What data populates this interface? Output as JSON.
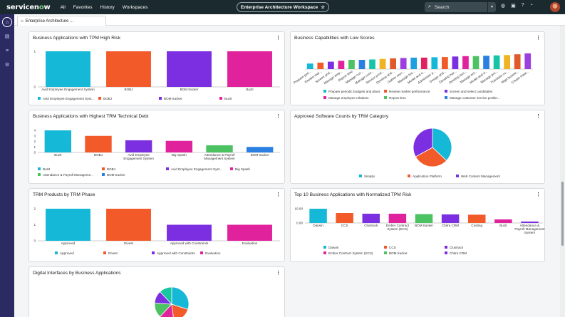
{
  "topbar": {
    "logo_pre": "servicen",
    "logo_o": "o",
    "logo_post": "w",
    "nav": [
      "All",
      "Favorites",
      "History",
      "Workspaces"
    ],
    "workspace": "Enterprise Architecture Workspace",
    "search_placeholder": "Search"
  },
  "tab": {
    "label": "Enterprise Architecture ..."
  },
  "colors": {
    "cyan": "#15b8d6",
    "orange": "#f25a2a",
    "purple": "#7b2fe0",
    "magenta": "#e0229c",
    "green": "#4cc263",
    "blue": "#2a7fe0",
    "teal": "#17c4a8",
    "yellow": "#f0b323"
  },
  "cards": {
    "tpm_high_risk": {
      "title": "Business Applications with TPM High Risk",
      "chart_data": {
        "type": "bar",
        "categories": [
          "Avid Employee Engagement System",
          "BOBJ",
          "BOM tracker",
          "Buzit"
        ],
        "values": [
          1,
          1,
          1,
          1
        ],
        "ylim": [
          0,
          1
        ],
        "yticks": [
          "0",
          "1"
        ],
        "legend": [
          "Avid Employee Engagement Syst...",
          "BOBJ",
          "BOM tracker",
          "Buzit"
        ]
      }
    },
    "low_scores": {
      "title": "Business Capabilities with Low Scores",
      "chart_data": {
        "type": "bar",
        "categories": [
          "Prepare peri...",
          "Review mar...",
          "Screen and...",
          "Manage emp...",
          "Report time",
          "Manage cus...",
          "Manage cont...",
          "Service prod...",
          "Develop and...",
          "Gather reso...",
          "Manage tea...",
          "Model and e...",
          "Administer p...",
          "Design and...",
          "Develop har...",
          "Develop bus...",
          "Manage ent...",
          "Model and d...",
          "Manage pro...",
          "Translate cu...",
          "Align busine...",
          "Create mate..."
        ],
        "values": [
          0.3,
          0.35,
          0.4,
          0.45,
          0.5,
          0.5,
          0.52,
          0.55,
          0.58,
          0.6,
          0.62,
          0.62,
          0.64,
          0.65,
          0.68,
          0.7,
          0.7,
          0.72,
          0.74,
          0.76,
          0.8,
          0.85
        ],
        "ylim": [
          0,
          1
        ],
        "legend": [
          "Prepare periodic budgets and plans",
          "Review market performance",
          "Screen and select candidates",
          "Manage employee relations",
          "Report time",
          "Manage customer service proble..."
        ]
      }
    },
    "tech_debt": {
      "title": "Business Applications with Highest TRM Technical Debt",
      "chart_data": {
        "type": "bar",
        "categories": [
          "Buzit",
          "BOBJ",
          "Avid Employee Engagement System",
          "Big Spash",
          "Attendance & Payroll Management System",
          "BOM tracker"
        ],
        "values": [
          4,
          3,
          2.2,
          2.1,
          1.3,
          1
        ],
        "ylim": [
          0,
          4
        ],
        "yticks": [
          "0",
          "1",
          "2",
          "3",
          "4"
        ],
        "legend": [
          "Buzit",
          "BOBJ",
          "Avid Employee Engagement Syst...",
          "Big Spash",
          "Attendance & Payroll Manageme...",
          "BOM tracker"
        ]
      }
    },
    "software_counts": {
      "title": "Approved Software Counts by TRM Category",
      "chart_data": {
        "type": "pie",
        "categories": [
          "Simplyi",
          "Application Platform",
          "Web Content Management"
        ],
        "values": [
          37,
          30,
          33
        ],
        "legend": [
          "Simplyi",
          "Application Platform",
          "Web Content Management"
        ]
      }
    },
    "trm_phase": {
      "title": "TRM Products by TRM Phase",
      "chart_data": {
        "type": "bar",
        "categories": [
          "Approved",
          "Divest",
          "Approved with Constraints",
          "Evaluation"
        ],
        "values": [
          2,
          2,
          1,
          1
        ],
        "ylim": [
          0,
          2
        ],
        "yticks": [
          "0",
          "1",
          "2"
        ],
        "legend": [
          "Approved",
          "Divest",
          "Approved with Constraints",
          "Evaluation"
        ]
      }
    },
    "normalized_tpm": {
      "title": "Top 10 Business Applications with Normalized TPM Risk",
      "chart_data": {
        "type": "bar",
        "categories": [
          "Darwin",
          "CCS",
          "Clustrack",
          "Ember Contract System (ECS)",
          "BOM tracker",
          "Chitra CRM",
          "Costing",
          "Buzit",
          "Attendance & Payroll Management System"
        ],
        "values": [
          10,
          7,
          6.5,
          6.5,
          6.2,
          6,
          5.8,
          2.5,
          1
        ],
        "ylim": [
          0,
          10
        ],
        "yticks": [
          "0.00",
          "10.00"
        ],
        "legend": [
          "Darwin",
          "CCS",
          "Clustrack",
          "Ember Contract System (ECS)",
          "BOM tracker",
          "Chitra CRM"
        ]
      }
    },
    "digital_interfaces": {
      "title": "Digital Interfaces by Business Applications",
      "chart_data": {
        "type": "pie",
        "values": [
          30,
          18,
          14,
          14,
          12,
          12
        ]
      }
    }
  }
}
